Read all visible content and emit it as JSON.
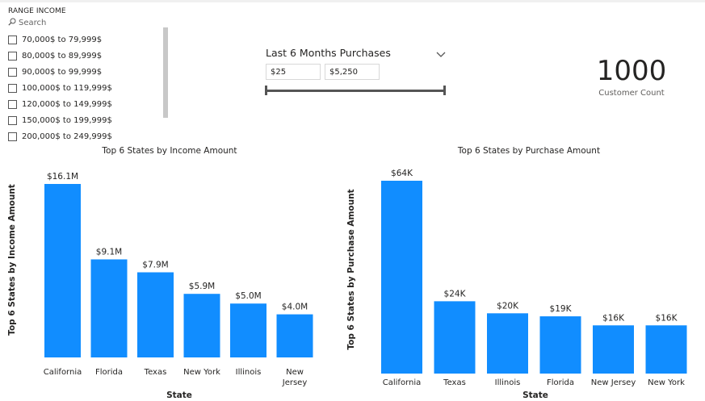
{
  "slicer": {
    "title": "RANGE INCOME",
    "search_placeholder": "Search",
    "items": [
      {
        "label": "70,000$ to 79,999$",
        "checked": false
      },
      {
        "label": "80,000$ to 89,999$",
        "checked": false
      },
      {
        "label": "90,000$ to 99,999$",
        "checked": false
      },
      {
        "label": "100,000$ to 119,999$",
        "checked": false
      },
      {
        "label": "120,000$ to 149,999$",
        "checked": false
      },
      {
        "label": "150,000$ to 199,999$",
        "checked": false
      },
      {
        "label": "200,000$ to 249,999$",
        "checked": false
      }
    ]
  },
  "range_slider": {
    "title": "Last 6 Months Purchases",
    "min_value": "$25",
    "max_value": "$5,250"
  },
  "card": {
    "value": "1000",
    "label": "Customer Count"
  },
  "chart_data": [
    {
      "type": "bar",
      "title": "Top 6 States by Income Amount",
      "xlabel": "State",
      "ylabel": "Top 6 States by Income Amount",
      "categories": [
        "California",
        "Florida",
        "Texas",
        "New York",
        "Illinois",
        "New Jersey"
      ],
      "tick_lines": [
        [
          "California"
        ],
        [
          "Florida"
        ],
        [
          "Texas"
        ],
        [
          "New York"
        ],
        [
          "Illinois"
        ],
        [
          "New",
          "Jersey"
        ]
      ],
      "values": [
        16.1,
        9.1,
        7.9,
        5.9,
        5.0,
        4.0
      ],
      "unit": "M USD",
      "data_labels": [
        "$16.1M",
        "$9.1M",
        "$7.9M",
        "$5.9M",
        "$5.0M",
        "$4.0M"
      ],
      "color": "#118dff"
    },
    {
      "type": "bar",
      "title": "Top 6 States by Purchase Amount",
      "xlabel": "State",
      "ylabel": "Top 6 States by Purchase Amount",
      "categories": [
        "California",
        "Texas",
        "Illinois",
        "Florida",
        "New Jersey",
        "New York"
      ],
      "tick_lines": [
        [
          "California"
        ],
        [
          "Texas"
        ],
        [
          "Illinois"
        ],
        [
          "Florida"
        ],
        [
          "New Jersey"
        ],
        [
          "New York"
        ]
      ],
      "values": [
        64,
        24,
        20,
        19,
        16,
        16
      ],
      "unit": "K USD",
      "data_labels": [
        "$64K",
        "$24K",
        "$20K",
        "$19K",
        "$16K",
        "$16K"
      ],
      "color": "#118dff"
    }
  ]
}
